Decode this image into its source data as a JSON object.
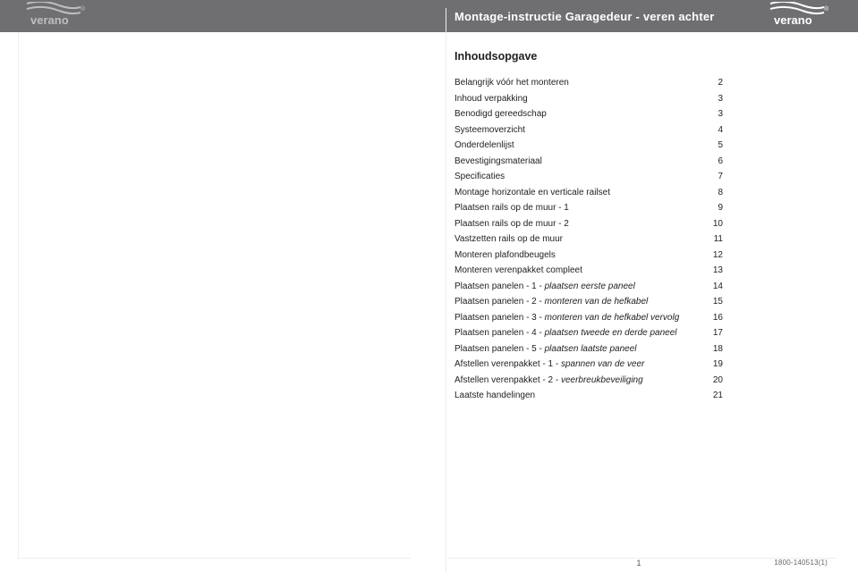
{
  "header": {
    "title": "Montage-instructie Garagedeur - veren achter",
    "bar_color": "#6f6f72",
    "text_color": "#ffffff",
    "brand_word": "verano",
    "brand_reg": "®"
  },
  "toc": {
    "heading": "Inhoudsopgave",
    "items": [
      {
        "label": "Belangrijk vóór het monteren",
        "page": "2"
      },
      {
        "label": "Inhoud verpakking",
        "page": "3"
      },
      {
        "label": "Benodigd gereedschap",
        "page": "3"
      },
      {
        "label": "Systeemoverzicht",
        "page": "4"
      },
      {
        "label": "Onderdelenlijst",
        "page": "5"
      },
      {
        "label": "Bevestigingsmateriaal",
        "page": "6"
      },
      {
        "label": "Specificaties",
        "page": "7"
      },
      {
        "label": "Montage horizontale en verticale railset",
        "page": "8"
      },
      {
        "label": "Plaatsen rails op de muur - 1",
        "page": "9"
      },
      {
        "label": "Plaatsen rails op de muur - 2",
        "page": "10"
      },
      {
        "label": "Vastzetten rails op de muur",
        "page": "11"
      },
      {
        "label": "Monteren plafondbeugels",
        "page": "12"
      },
      {
        "label": "Monteren verenpakket compleet",
        "page": "13"
      },
      {
        "label_pre": "Plaatsen panelen - 1 - ",
        "label_em": "plaatsen eerste paneel",
        "page": "14"
      },
      {
        "label_pre": "Plaatsen panelen - 2 - ",
        "label_em": "monteren van de hefkabel",
        "page": "15"
      },
      {
        "label_pre": "Plaatsen panelen - 3 - ",
        "label_em": "monteren van de hefkabel vervolg",
        "page": "16"
      },
      {
        "label_pre": "Plaatsen panelen - 4 -  ",
        "label_em": "plaatsen tweede en derde paneel",
        "page": "17"
      },
      {
        "label_pre": "Plaatsen panelen - 5 - ",
        "label_em": "plaatsen laatste paneel",
        "page": "18"
      },
      {
        "label_pre": "Afstellen verenpakket - 1 - ",
        "label_em": "spannen van de veer",
        "page": "19"
      },
      {
        "label_pre": "Afstellen verenpakket - 2 - ",
        "label_em": "veerbreukbeveiliging",
        "page": "20"
      },
      {
        "label": "Laatste handelingen",
        "page": "21"
      }
    ]
  },
  "footer": {
    "page_number": "1",
    "doc_id": "1800-140513(1)"
  },
  "styles": {
    "page_bg": "#ffffff",
    "rule_color": "#eeeeee",
    "body_font_size_pt": 10,
    "heading_font_size_pt": 12.5
  }
}
